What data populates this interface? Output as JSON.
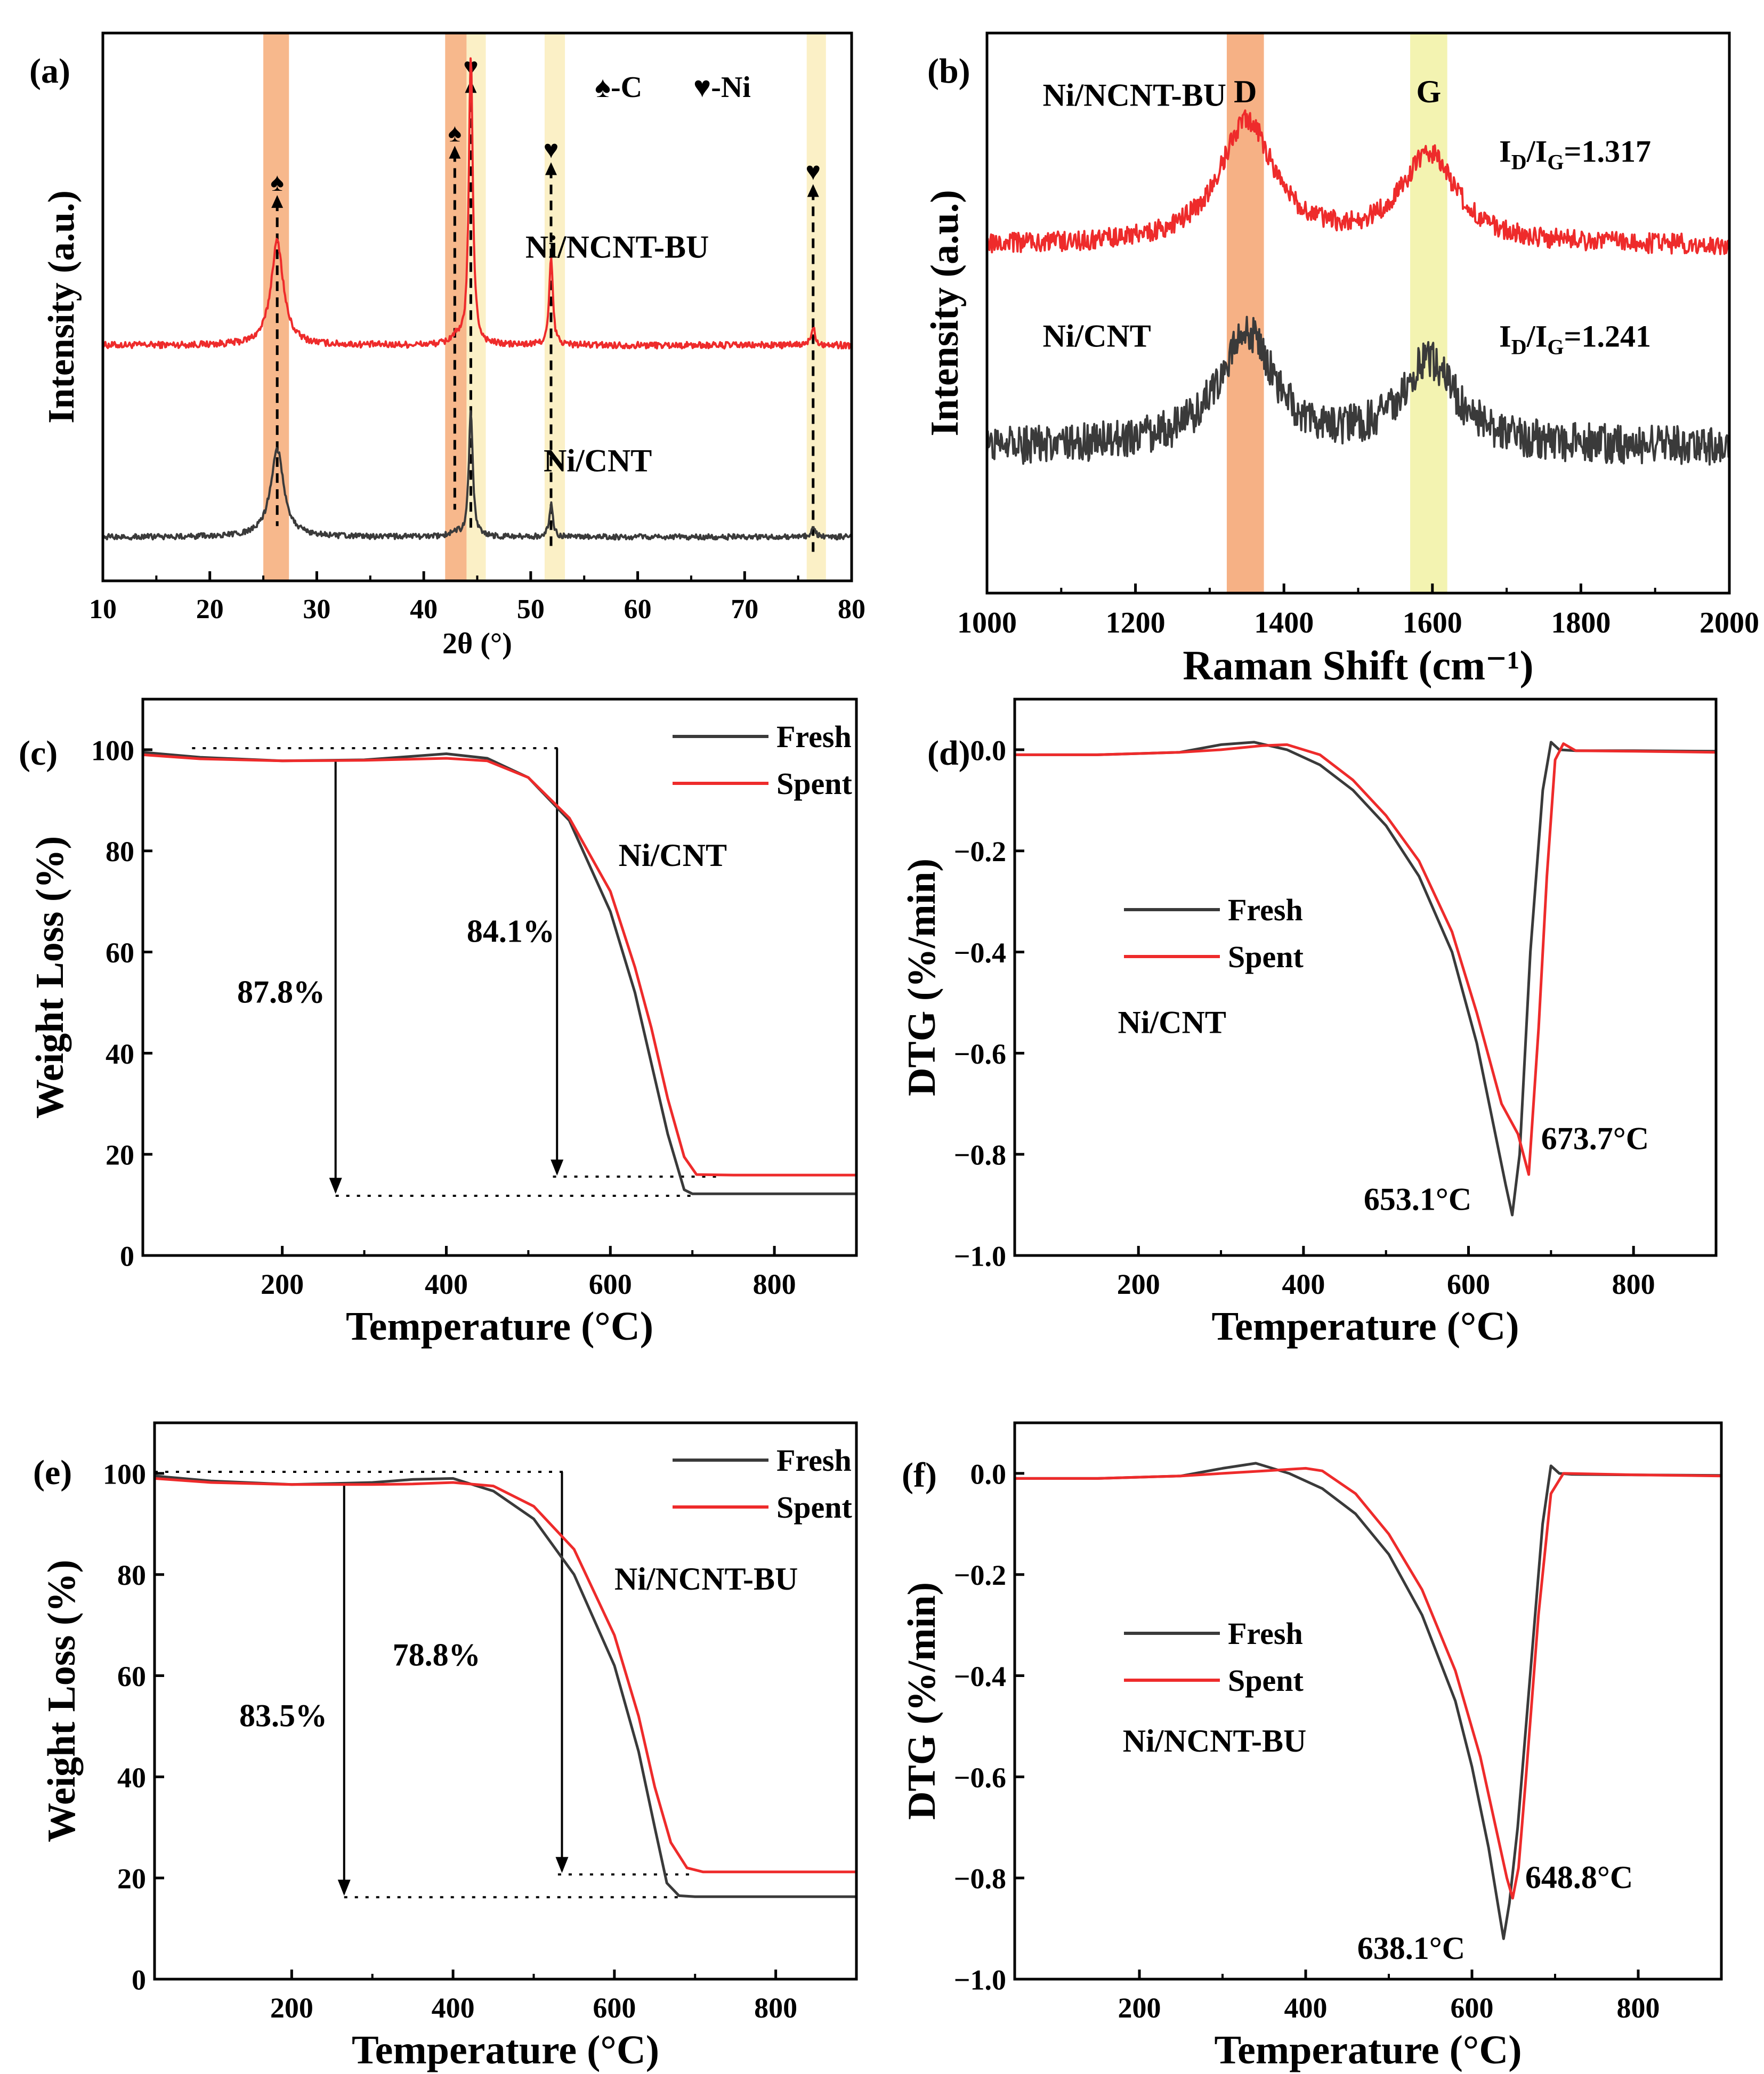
{
  "figure": {
    "background": "#ffffff"
  },
  "colors": {
    "fresh": "#3a3a3a",
    "spent": "#ee2b2b",
    "band_c": "#f6b07f",
    "band_ni": "#fbeec0",
    "band_d": "#f5a878",
    "band_g": "#f2f2a8",
    "ink": "#000000"
  },
  "chart_data": [
    {
      "id": "a",
      "type": "line",
      "panel_label": "(a)",
      "xlabel": "2θ (°)",
      "ylabel": "Intensity (a.u.)",
      "xlim": [
        10,
        80
      ],
      "xticks": [
        10,
        20,
        30,
        40,
        50,
        60,
        70,
        80
      ],
      "ylim": [
        0,
        10
      ],
      "yticks": [],
      "legend_symbols": [
        "♠-C",
        "♥-Ni"
      ],
      "bands": [
        {
          "x0": 25.0,
          "x1": 27.4,
          "color": "band_c"
        },
        {
          "x0": 42.0,
          "x1": 44.0,
          "color": "band_c"
        },
        {
          "x0": 44.0,
          "x1": 45.8,
          "color": "band_ni"
        },
        {
          "x0": 51.3,
          "x1": 53.2,
          "color": "band_ni"
        },
        {
          "x0": 75.8,
          "x1": 77.6,
          "color": "band_ni"
        }
      ],
      "markers": [
        {
          "x": 26.3,
          "y_top": 7.1,
          "y_bottom": 1.0,
          "symbol": "♠"
        },
        {
          "x": 42.9,
          "y_top": 8.0,
          "y_bottom": 1.3,
          "symbol": "♠"
        },
        {
          "x": 44.4,
          "y_top": 9.2,
          "y_bottom": 0.9,
          "symbol": "♥"
        },
        {
          "x": 51.9,
          "y_top": 7.7,
          "y_bottom": 0.6,
          "symbol": "♥"
        },
        {
          "x": 76.4,
          "y_top": 7.3,
          "y_bottom": 0.5,
          "symbol": "♥"
        }
      ],
      "series": [
        {
          "name": "Ni/NCNT-BU",
          "color": "spent",
          "baseline": 4.3,
          "noise": 0.06,
          "peaks": [
            [
              26.3,
              1.9,
              0.7
            ],
            [
              44.4,
              5.3,
              0.22
            ],
            [
              51.9,
              1.6,
              0.2
            ],
            [
              76.4,
              0.35,
              0.22
            ],
            [
              42.9,
              0.12,
              0.5
            ]
          ]
        },
        {
          "name": "Ni/CNT",
          "color": "fresh",
          "baseline": 0.8,
          "noise": 0.05,
          "peaks": [
            [
              26.3,
              1.6,
              0.75
            ],
            [
              44.4,
              2.3,
              0.22
            ],
            [
              51.9,
              0.6,
              0.2
            ],
            [
              76.4,
              0.2,
              0.22
            ],
            [
              42.9,
              0.08,
              0.5
            ]
          ]
        }
      ],
      "annotations": [
        {
          "text": "Ni/NCNT-BU",
          "x": 49.5,
          "y": 5.9
        },
        {
          "text": "Ni/CNT",
          "x": 51.2,
          "y": 2.0
        }
      ]
    },
    {
      "id": "b",
      "type": "line",
      "panel_label": "(b)",
      "xlabel": "Raman Shift (cm⁻¹)",
      "ylabel": "Intensity (a.u.)",
      "xlim": [
        1000,
        2000
      ],
      "xticks": [
        1000,
        1200,
        1400,
        1600,
        1800,
        2000
      ],
      "ylim": [
        0,
        10
      ],
      "yticks": [],
      "bands": [
        {
          "x0": 1323,
          "x1": 1373,
          "color": "band_d",
          "label": "D"
        },
        {
          "x0": 1570,
          "x1": 1620,
          "color": "band_g",
          "label": "G"
        }
      ],
      "series": [
        {
          "name": "Ni/NCNT-BU",
          "color": "spent",
          "baseline": 6.2,
          "noise": 0.18,
          "peaks": [
            [
              1350,
              2.2,
              45
            ],
            [
              1595,
              1.6,
              45
            ]
          ]
        },
        {
          "name": "Ni/CNT",
          "color": "fresh",
          "baseline": 2.6,
          "noise": 0.35,
          "peaks": [
            [
              1350,
              2.0,
              45
            ],
            [
              1595,
              1.5,
              45
            ]
          ]
        }
      ],
      "annotations": [
        {
          "text": "Ni/NCNT-BU",
          "x": 1075,
          "y": 8.7
        },
        {
          "text": "Ni/CNT",
          "x": 1075,
          "y": 4.4
        },
        {
          "text": "I",
          "sub": "D",
          "text2": "/I",
          "sub2": "G",
          "text3": "=1.317",
          "x": 1690,
          "y": 7.7
        },
        {
          "text": "I",
          "sub": "D",
          "text2": "/I",
          "sub2": "G",
          "text3": "=1.241",
          "x": 1690,
          "y": 4.4
        }
      ]
    },
    {
      "id": "c",
      "type": "line",
      "panel_label": "(c)",
      "xlabel": "Temperature (°C)",
      "ylabel": "Weight Loss (%)",
      "xlim": [
        30,
        900
      ],
      "xticks": [
        200,
        400,
        600,
        800
      ],
      "ylim": [
        0,
        110
      ],
      "yticks": [
        0,
        20,
        40,
        60,
        80,
        100
      ],
      "series": [
        {
          "name": "Fresh",
          "color": "fresh",
          "x": [
            30,
            100,
            200,
            300,
            350,
            400,
            450,
            500,
            550,
            600,
            630,
            650,
            670,
            690,
            700,
            750,
            800,
            900
          ],
          "y": [
            99.5,
            98.5,
            97.8,
            98.0,
            98.6,
            99.2,
            98.3,
            94.5,
            86.0,
            68.0,
            52.0,
            38.0,
            24.0,
            13.0,
            12.2,
            12.2,
            12.2,
            12.2
          ]
        },
        {
          "name": "Spent",
          "color": "spent",
          "x": [
            30,
            100,
            200,
            300,
            350,
            400,
            450,
            500,
            550,
            600,
            630,
            650,
            670,
            690,
            705,
            750,
            800,
            900
          ],
          "y": [
            99.0,
            98.2,
            97.8,
            97.9,
            98.1,
            98.3,
            97.8,
            94.5,
            86.5,
            72.0,
            57.0,
            45.0,
            31.0,
            19.5,
            16.0,
            15.9,
            15.9,
            15.9
          ]
        }
      ],
      "legend": [
        "Fresh",
        "Spent"
      ],
      "legend_position": "top-right",
      "guides": [
        {
          "kind": "dotted",
          "x0": 90,
          "x1": 540,
          "y": 100.3
        },
        {
          "kind": "dotted",
          "x0": 265,
          "x1": 700,
          "y": 11.8
        },
        {
          "kind": "dotted",
          "x0": 530,
          "x1": 730,
          "y": 15.6
        },
        {
          "kind": "arrow",
          "x": 265,
          "y0": 97.8,
          "y1": 12.2
        },
        {
          "kind": "arrow",
          "x": 535,
          "y0": 100.3,
          "y1": 15.8
        }
      ],
      "annotations": [
        {
          "text": "Ni/CNT",
          "x": 610,
          "y": 77
        },
        {
          "text": "84.1%",
          "x": 425,
          "y": 62
        },
        {
          "text": "87.8%",
          "x": 145,
          "y": 50
        }
      ]
    },
    {
      "id": "d",
      "type": "line",
      "panel_label": "(d)",
      "xlabel": "Temperature (°C)",
      "ylabel": "DTG (%/min)",
      "xlim": [
        50,
        900
      ],
      "xticks": [
        200,
        400,
        600,
        800
      ],
      "ylim": [
        -1.0,
        0.1
      ],
      "yticks": [
        -1.0,
        -0.8,
        -0.6,
        -0.4,
        -0.2,
        0.0
      ],
      "series": [
        {
          "name": "Fresh",
          "color": "fresh",
          "x": [
            50,
            150,
            250,
            300,
            340,
            380,
            420,
            460,
            500,
            540,
            580,
            610,
            630,
            645,
            653,
            662,
            675,
            690,
            700,
            710,
            730,
            800,
            900
          ],
          "y": [
            -0.01,
            -0.01,
            -0.005,
            0.01,
            0.015,
            0.0,
            -0.03,
            -0.08,
            -0.15,
            -0.25,
            -0.4,
            -0.58,
            -0.74,
            -0.86,
            -0.92,
            -0.8,
            -0.4,
            -0.08,
            0.015,
            0.0,
            -0.002,
            -0.002,
            -0.003
          ]
        },
        {
          "name": "Spent",
          "color": "spent",
          "x": [
            50,
            150,
            250,
            300,
            350,
            380,
            420,
            460,
            500,
            540,
            580,
            610,
            640,
            660,
            673,
            685,
            695,
            705,
            715,
            730,
            800,
            900
          ],
          "y": [
            -0.01,
            -0.01,
            -0.005,
            0.0,
            0.008,
            0.01,
            -0.01,
            -0.06,
            -0.13,
            -0.22,
            -0.36,
            -0.52,
            -0.7,
            -0.76,
            -0.84,
            -0.55,
            -0.25,
            -0.02,
            0.012,
            -0.002,
            -0.003,
            -0.005
          ]
        }
      ],
      "legend": [
        "Fresh",
        "Spent"
      ],
      "legend_position": "center-left",
      "annotations": [
        {
          "text": "Ni/CNT",
          "x": 175,
          "y": -0.56
        },
        {
          "text": "653.1°C",
          "x": 473,
          "y": -0.91
        },
        {
          "text": "673.7°C",
          "x": 688,
          "y": -0.79
        }
      ]
    },
    {
      "id": "e",
      "type": "line",
      "panel_label": "(e)",
      "xlabel": "Temperature (°C)",
      "ylabel": "Weight Loss (%)",
      "xlim": [
        30,
        900
      ],
      "xticks": [
        200,
        400,
        600,
        800
      ],
      "ylim": [
        0,
        110
      ],
      "yticks": [
        0,
        20,
        40,
        60,
        80,
        100
      ],
      "series": [
        {
          "name": "Fresh",
          "color": "fresh",
          "x": [
            30,
            100,
            200,
            300,
            350,
            400,
            450,
            500,
            550,
            600,
            630,
            650,
            665,
            680,
            700,
            800,
            900
          ],
          "y": [
            99.5,
            98.5,
            97.8,
            98.2,
            98.8,
            99.0,
            96.5,
            91.0,
            80.0,
            62.0,
            45.0,
            30.0,
            19.0,
            16.5,
            16.3,
            16.3,
            16.3
          ]
        },
        {
          "name": "Spent",
          "color": "spent",
          "x": [
            30,
            100,
            200,
            300,
            350,
            400,
            450,
            500,
            550,
            600,
            630,
            650,
            670,
            690,
            710,
            800,
            900
          ],
          "y": [
            99.0,
            98.2,
            97.8,
            97.8,
            97.9,
            98.2,
            97.5,
            93.5,
            85.0,
            68.0,
            52.0,
            38.0,
            27.0,
            22.0,
            21.2,
            21.2,
            21.2
          ]
        }
      ],
      "legend": [
        "Fresh",
        "Spent"
      ],
      "legend_position": "top-right",
      "guides": [
        {
          "kind": "dotted",
          "x0": 30,
          "x1": 540,
          "y": 100.3
        },
        {
          "kind": "dotted",
          "x0": 265,
          "x1": 680,
          "y": 16.2
        },
        {
          "kind": "dotted",
          "x0": 530,
          "x1": 700,
          "y": 20.7
        },
        {
          "kind": "arrow",
          "x": 265,
          "y0": 97.8,
          "y1": 16.5
        },
        {
          "kind": "arrow",
          "x": 535,
          "y0": 100.3,
          "y1": 21.0
        }
      ],
      "annotations": [
        {
          "text": "Ni/NCNT-BU",
          "x": 600,
          "y": 77
        },
        {
          "text": "78.8%",
          "x": 325,
          "y": 62
        },
        {
          "text": "83.5%",
          "x": 135,
          "y": 50
        }
      ]
    },
    {
      "id": "f",
      "type": "line",
      "panel_label": "(f)",
      "xlabel": "Temperature (°C)",
      "ylabel": "DTG (%/min)",
      "xlim": [
        50,
        900
      ],
      "xticks": [
        200,
        400,
        600,
        800
      ],
      "ylim": [
        -1.0,
        0.1
      ],
      "yticks": [
        -1.0,
        -0.8,
        -0.6,
        -0.4,
        -0.2,
        0.0
      ],
      "series": [
        {
          "name": "Fresh",
          "color": "fresh",
          "x": [
            50,
            150,
            250,
            300,
            340,
            380,
            420,
            460,
            500,
            540,
            580,
            600,
            620,
            632,
            638,
            645,
            655,
            670,
            685,
            695,
            705,
            720,
            800,
            900
          ],
          "y": [
            -0.01,
            -0.01,
            -0.005,
            0.01,
            0.02,
            0.0,
            -0.03,
            -0.08,
            -0.16,
            -0.28,
            -0.45,
            -0.58,
            -0.74,
            -0.86,
            -0.92,
            -0.85,
            -0.7,
            -0.4,
            -0.1,
            0.015,
            0.0,
            -0.002,
            -0.003,
            -0.004
          ]
        },
        {
          "name": "Spent",
          "color": "spent",
          "x": [
            50,
            150,
            250,
            300,
            350,
            400,
            420,
            460,
            500,
            540,
            580,
            610,
            630,
            642,
            649,
            656,
            665,
            680,
            695,
            710,
            800,
            900
          ],
          "y": [
            -0.01,
            -0.01,
            -0.005,
            0.0,
            0.005,
            0.01,
            0.005,
            -0.04,
            -0.12,
            -0.23,
            -0.39,
            -0.56,
            -0.71,
            -0.8,
            -0.84,
            -0.78,
            -0.6,
            -0.28,
            -0.04,
            0.0,
            -0.003,
            -0.005
          ]
        }
      ],
      "legend": [
        "Fresh",
        "Spent"
      ],
      "legend_position": "center-left",
      "annotations": [
        {
          "text": "Ni/NCNT-BU",
          "x": 180,
          "y": -0.55
        },
        {
          "text": "638.1°C",
          "x": 462,
          "y": -0.96
        },
        {
          "text": "648.8°C",
          "x": 664,
          "y": -0.82
        }
      ]
    }
  ]
}
